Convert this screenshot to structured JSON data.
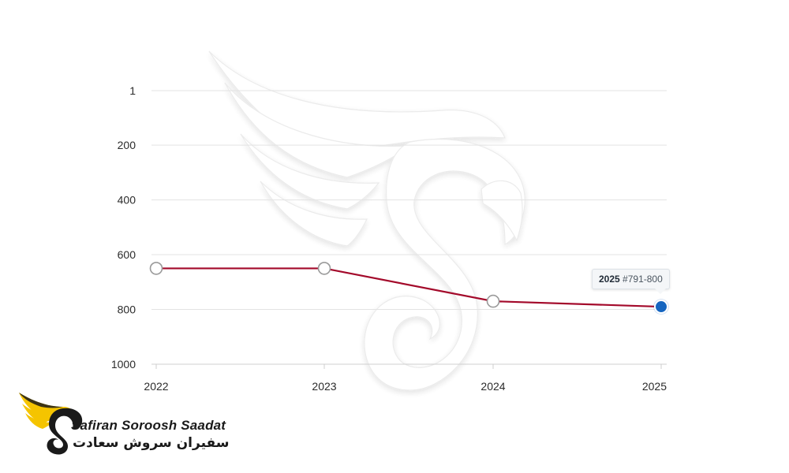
{
  "chart_data": {
    "type": "line",
    "x": [
      "2022",
      "2023",
      "2024",
      "2025"
    ],
    "series": [
      {
        "values": [
          650,
          650,
          770,
          790
        ]
      }
    ],
    "y_ticks": [
      "1",
      "200",
      "400",
      "600",
      "800",
      "1000"
    ],
    "ylim": [
      1,
      1000
    ],
    "y_reversed": true,
    "grid": true,
    "title": "",
    "xlabel": "",
    "ylabel": ""
  },
  "colors": {
    "line": "#a3092a",
    "marker_fill": "#ffffff",
    "marker_stroke": "#9a9a9a",
    "active_marker": "#1565c0"
  },
  "tooltip": {
    "year": "2025",
    "range": "#791-800"
  },
  "logo": {
    "name_en": "Safiran Soroosh Saadat",
    "name_fa": "سفیران سروش سعادت"
  },
  "watermark": "wing-s-logo"
}
